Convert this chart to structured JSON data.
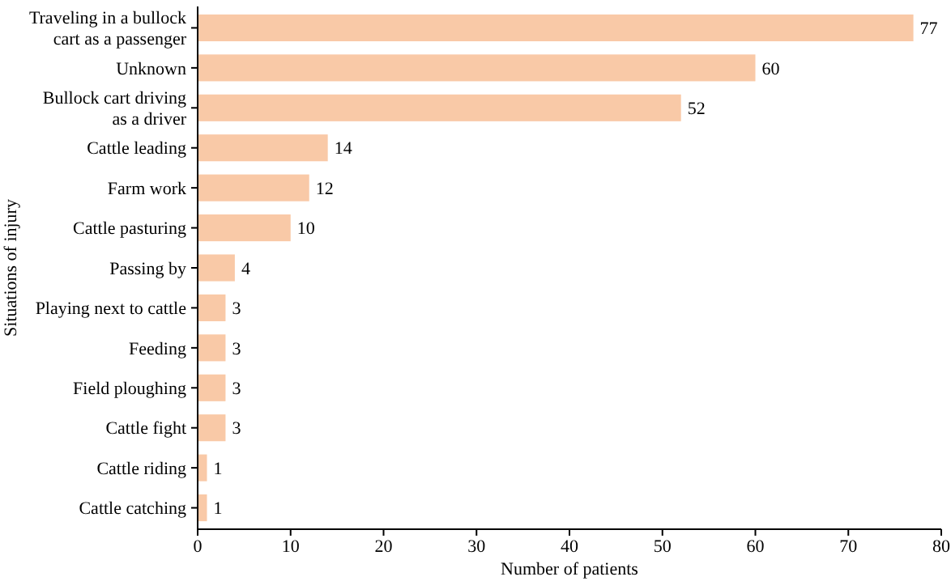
{
  "chart_data": {
    "type": "bar",
    "orientation": "horizontal",
    "xlabel": "Number of patients",
    "ylabel": "Situations of injury",
    "categories": [
      "Traveling in a bullock cart as a passenger",
      "Unknown",
      "Bullock cart driving as a driver",
      "Cattle leading",
      "Farm work",
      "Cattle pasturing",
      "Passing by",
      "Playing next to cattle",
      "Feeding",
      "Field ploughing",
      "Cattle fight",
      "Cattle riding",
      "Cattle catching"
    ],
    "values": [
      77,
      60,
      52,
      14,
      12,
      10,
      4,
      3,
      3,
      3,
      3,
      1,
      1
    ],
    "color": "#f9c9a7",
    "data_labels": true,
    "xlim": [
      0,
      80
    ],
    "xticks": [
      0,
      10,
      20,
      30,
      40,
      50,
      60,
      70,
      80
    ],
    "grid": false
  }
}
